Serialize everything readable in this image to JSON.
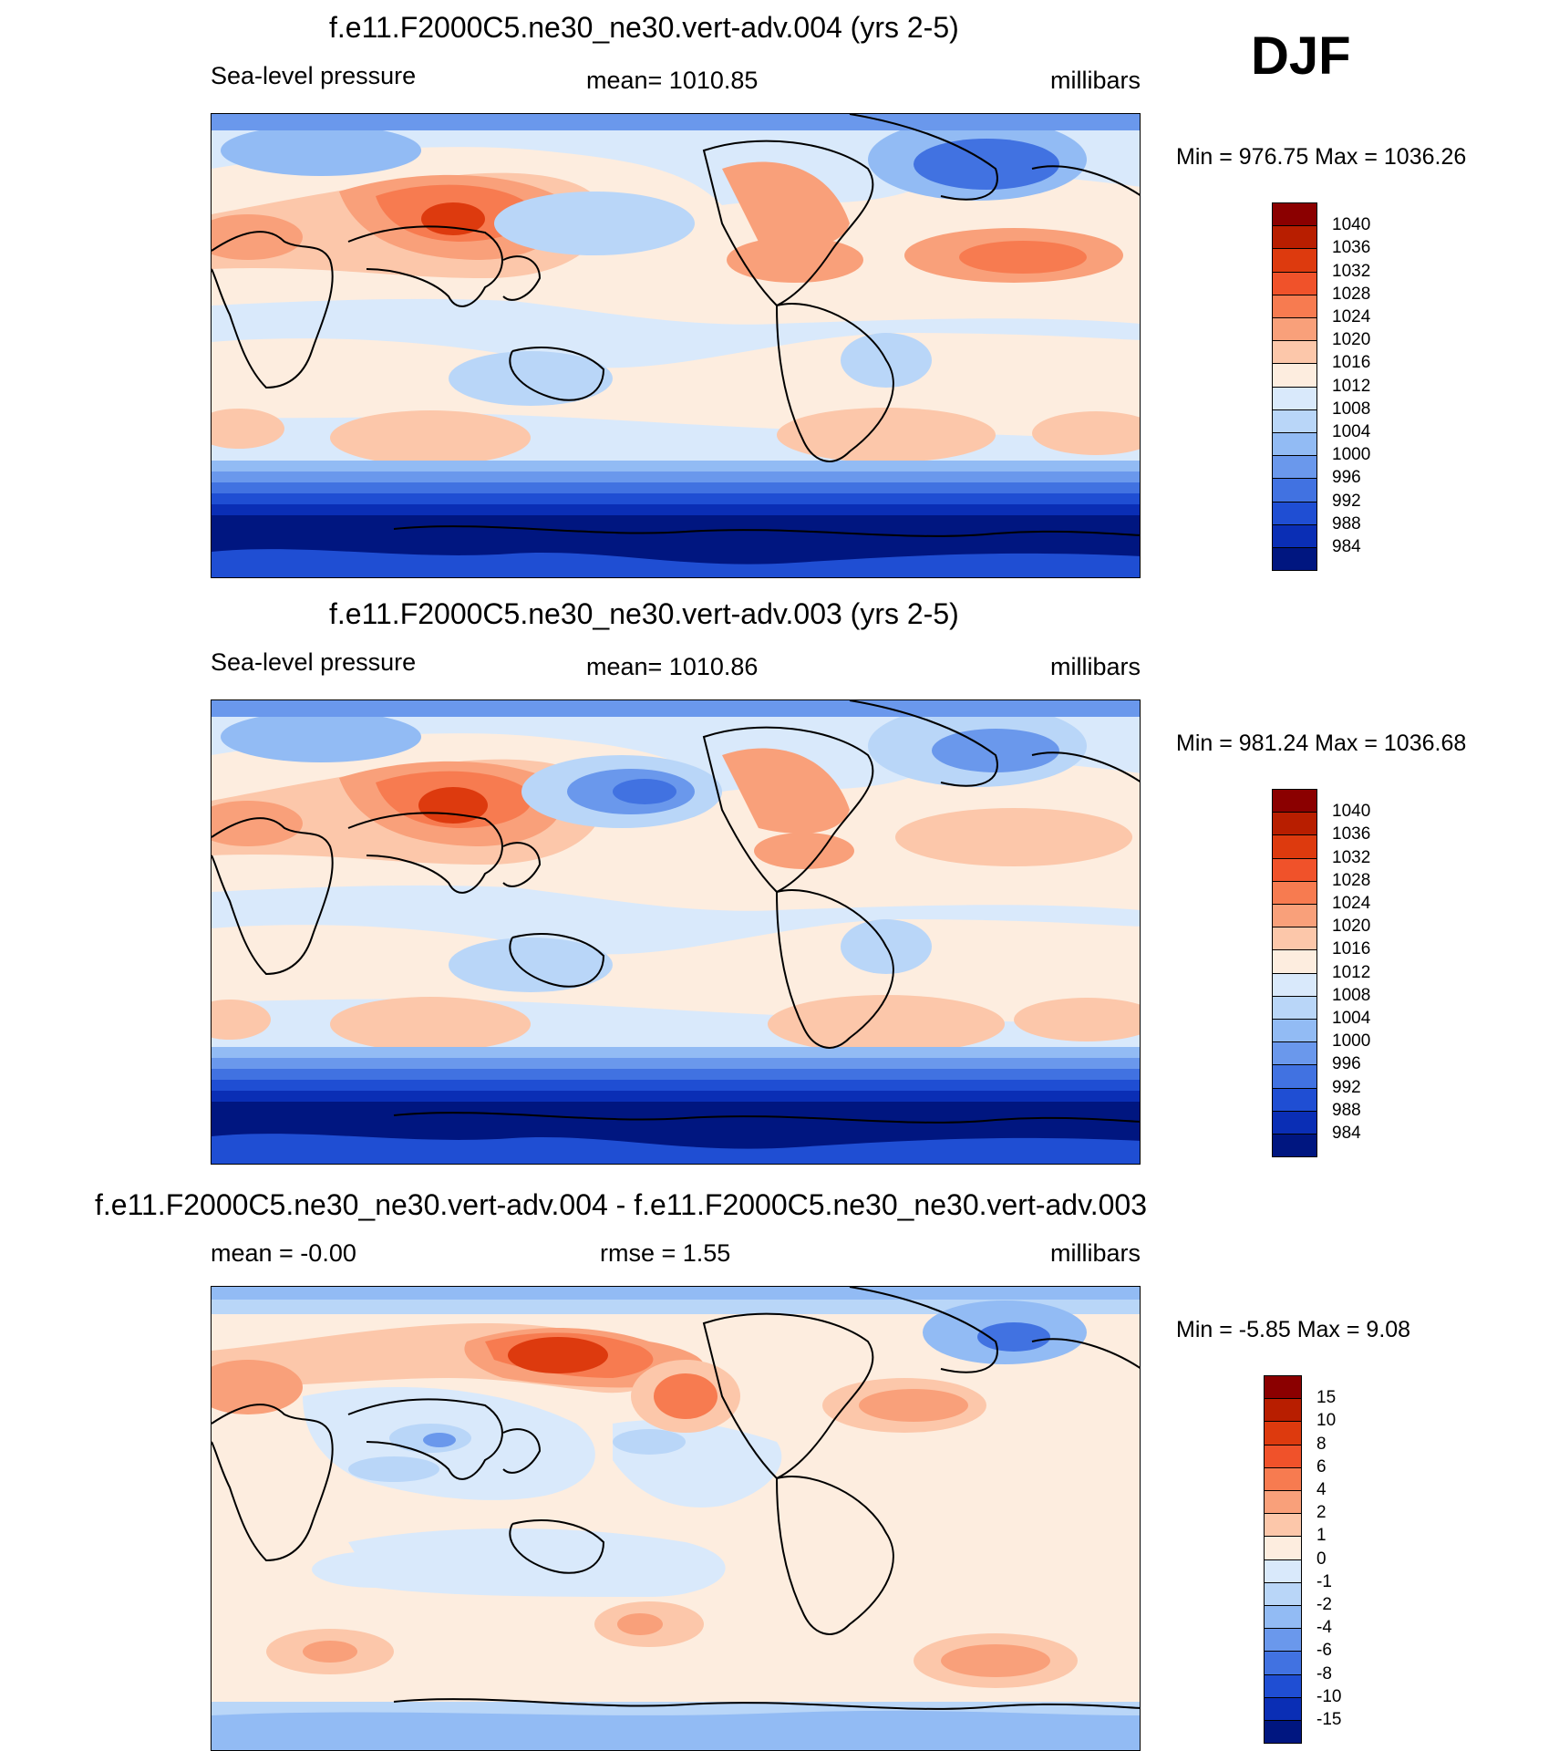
{
  "season": "DJF",
  "panels": [
    {
      "title": "f.e11.F2000C5.ne30_ne30.vert-adv.004 (yrs 2-5)",
      "left_label": "Sea-level pressure",
      "center_label": "mean= 1010.85",
      "right_label": "millibars",
      "minmax": "Min = 976.75 Max = 1036.26",
      "map_name": "slp-map-vert-adv-004"
    },
    {
      "title": "f.e11.F2000C5.ne30_ne30.vert-adv.003 (yrs 2-5)",
      "left_label": "Sea-level pressure",
      "center_label": "mean= 1010.86",
      "right_label": "millibars",
      "minmax": "Min = 981.24 Max = 1036.68",
      "map_name": "slp-map-vert-adv-003"
    },
    {
      "title": "f.e11.F2000C5.ne30_ne30.vert-adv.004 - f.e11.F2000C5.ne30_ne30.vert-adv.003",
      "left_label": "mean =  -0.00",
      "center_label": "rmse =   1.55",
      "right_label": "millibars",
      "minmax": "Min =  -5.85 Max =   9.08",
      "map_name": "slp-difference-map"
    }
  ],
  "colorbar_slp": {
    "labels": [
      "1040",
      "1036",
      "1032",
      "1028",
      "1024",
      "1020",
      "1016",
      "1012",
      "1008",
      "1004",
      "1000",
      "996",
      "992",
      "988",
      "984"
    ],
    "colors": [
      "#8b0000",
      "#b81e00",
      "#dd3a0e",
      "#f0522a",
      "#f77b50",
      "#f9a07a",
      "#fcc7aa",
      "#fdeddf",
      "#d9e9fb",
      "#b9d6f8",
      "#92bbf4",
      "#6a98ec",
      "#4172e1",
      "#1f4ed3",
      "#0a2eb5",
      "#001680"
    ]
  },
  "colorbar_diff": {
    "labels": [
      "15",
      "10",
      "8",
      "6",
      "4",
      "2",
      "1",
      "0",
      "-1",
      "-2",
      "-4",
      "-6",
      "-8",
      "-10",
      "-15"
    ],
    "colors": [
      "#8b0000",
      "#b81e00",
      "#dd3a0e",
      "#f0522a",
      "#f77b50",
      "#f9a07a",
      "#fcc7aa",
      "#fdeddf",
      "#d9e9fb",
      "#b9d6f8",
      "#92bbf4",
      "#6a98ec",
      "#4172e1",
      "#1f4ed3",
      "#0a2eb5",
      "#001680"
    ]
  }
}
